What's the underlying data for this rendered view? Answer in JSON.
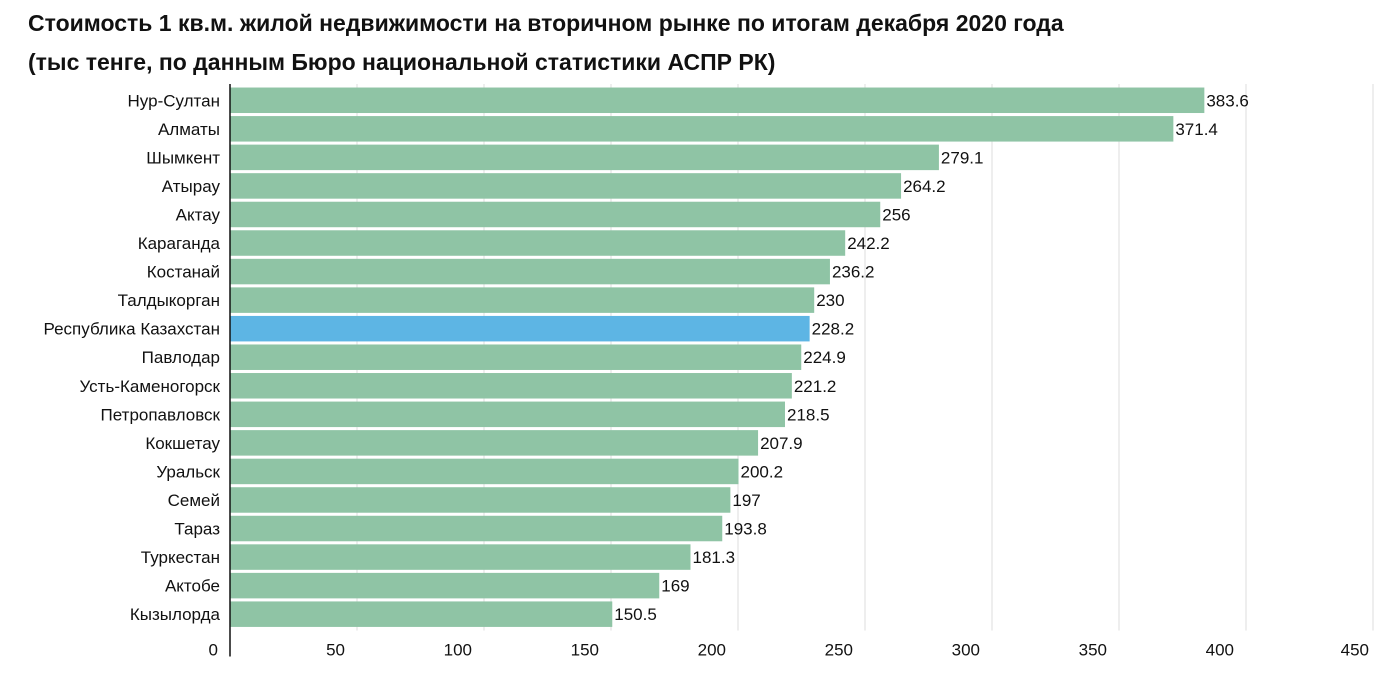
{
  "chart_data": {
    "type": "bar",
    "orientation": "horizontal",
    "title": "Стоимость 1 кв.м. жилой недвижимости на вторичном рынке по итогам декабря 2020 года",
    "subtitle": "(тыс тенге, по данным Бюро национальной статистики АСПР РК)",
    "categories": [
      "Нур-Султан",
      "Алматы",
      "Шымкент",
      "Атырау",
      "Актау",
      "Караганда",
      "Костанай",
      "Талдыкорган",
      "Республика Казахстан",
      "Павлодар",
      "Усть-Каменогорск",
      "Петропавловск",
      "Кокшетау",
      "Уральск",
      "Семей",
      "Тараз",
      "Туркестан",
      "Актобе",
      "Кызылорда"
    ],
    "values": [
      383.6,
      371.4,
      279.1,
      264.2,
      256,
      242.2,
      236.2,
      230,
      228.2,
      224.9,
      221.2,
      218.5,
      207.9,
      200.2,
      197,
      193.8,
      181.3,
      169,
      150.5
    ],
    "value_labels": [
      "383.6",
      "371.4",
      "279.1",
      "264.2",
      "256",
      "242.2",
      "236.2",
      "230",
      "228.2",
      "224.9",
      "221.2",
      "218.5",
      "207.9",
      "200.2",
      "197",
      "193.8",
      "181.3",
      "169",
      "150.5"
    ],
    "highlight_category": "Республика Казахстан",
    "xlim": [
      0,
      450
    ],
    "xticks": [
      "0",
      "50",
      "100",
      "150",
      "200",
      "250",
      "300",
      "350",
      "400",
      "450"
    ],
    "grid": true,
    "legend": "none",
    "colors": {
      "bar": "#8fc4a5",
      "highlight": "#5db5e4",
      "grid": "#dddddd",
      "axis": "#111111"
    }
  }
}
